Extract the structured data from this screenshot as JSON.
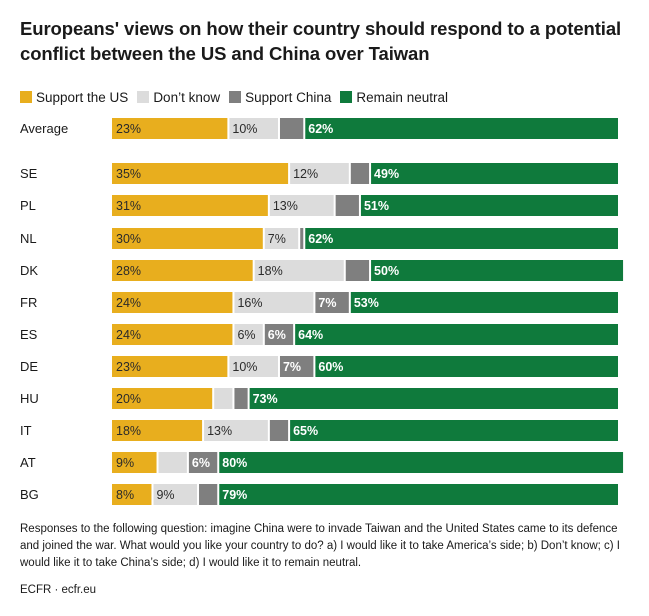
{
  "title": "Europeans' views on how their country should respond to a potential conflict between the US and China over Taiwan",
  "legend": [
    {
      "label": "Support the US",
      "color": "#e8ae1e"
    },
    {
      "label": "Don’t know",
      "color": "#dcdcdc"
    },
    {
      "label": "Support China",
      "color": "#7f7f7f"
    },
    {
      "label": "Remain neutral",
      "color": "#0f7a3c"
    }
  ],
  "chart_data": {
    "type": "bar",
    "orientation": "horizontal",
    "stacked": true,
    "title": "Europeans' views on how their country should respond to a potential conflict between the US and China over Taiwan",
    "categories": [
      "Average",
      "SE",
      "PL",
      "NL",
      "DK",
      "FR",
      "ES",
      "DE",
      "HU",
      "IT",
      "AT",
      "BG"
    ],
    "series": [
      {
        "name": "Support the US",
        "color": "#e8ae1e",
        "values": [
          23,
          35,
          31,
          30,
          28,
          24,
          24,
          23,
          20,
          18,
          9,
          8
        ],
        "labels": [
          "23%",
          "35%",
          "31%",
          "30%",
          "28%",
          "24%",
          "24%",
          "23%",
          "20%",
          "18%",
          "9%",
          "8%"
        ]
      },
      {
        "name": "Don’t know",
        "color": "#dcdcdc",
        "values": [
          10,
          12,
          13,
          7,
          18,
          16,
          6,
          10,
          4,
          13,
          6,
          9
        ],
        "labels": [
          "10%",
          "12%",
          "13%",
          "7%",
          "18%",
          "16%",
          "6%",
          "10%",
          "",
          "13%",
          "",
          "9%"
        ]
      },
      {
        "name": "Support China",
        "color": "#7f7f7f",
        "values": [
          5,
          4,
          5,
          1,
          5,
          7,
          6,
          7,
          3,
          4,
          6,
          4
        ],
        "labels": [
          "",
          "",
          "",
          "",
          "",
          "7%",
          "6%",
          "7%",
          "",
          "",
          "6%",
          ""
        ]
      },
      {
        "name": "Remain neutral",
        "color": "#0f7a3c",
        "values": [
          62,
          49,
          51,
          62,
          50,
          53,
          64,
          60,
          73,
          65,
          80,
          79
        ],
        "labels": [
          "62%",
          "49%",
          "51%",
          "62%",
          "50%",
          "53%",
          "64%",
          "60%",
          "73%",
          "65%",
          "80%",
          "79%"
        ]
      }
    ],
    "xlim": [
      0,
      100
    ],
    "grid": false,
    "legend_position": "top-left"
  },
  "note": "Responses to the following question: imagine China were to invade Taiwan and the United States came to its defence and joined the war. What would you like your country to do? a) I would like it to take America’s side; b) Don’t know; c) I would like it to take China’s side; d) I would like it to remain neutral.",
  "source": "ECFR · ecfr.eu"
}
